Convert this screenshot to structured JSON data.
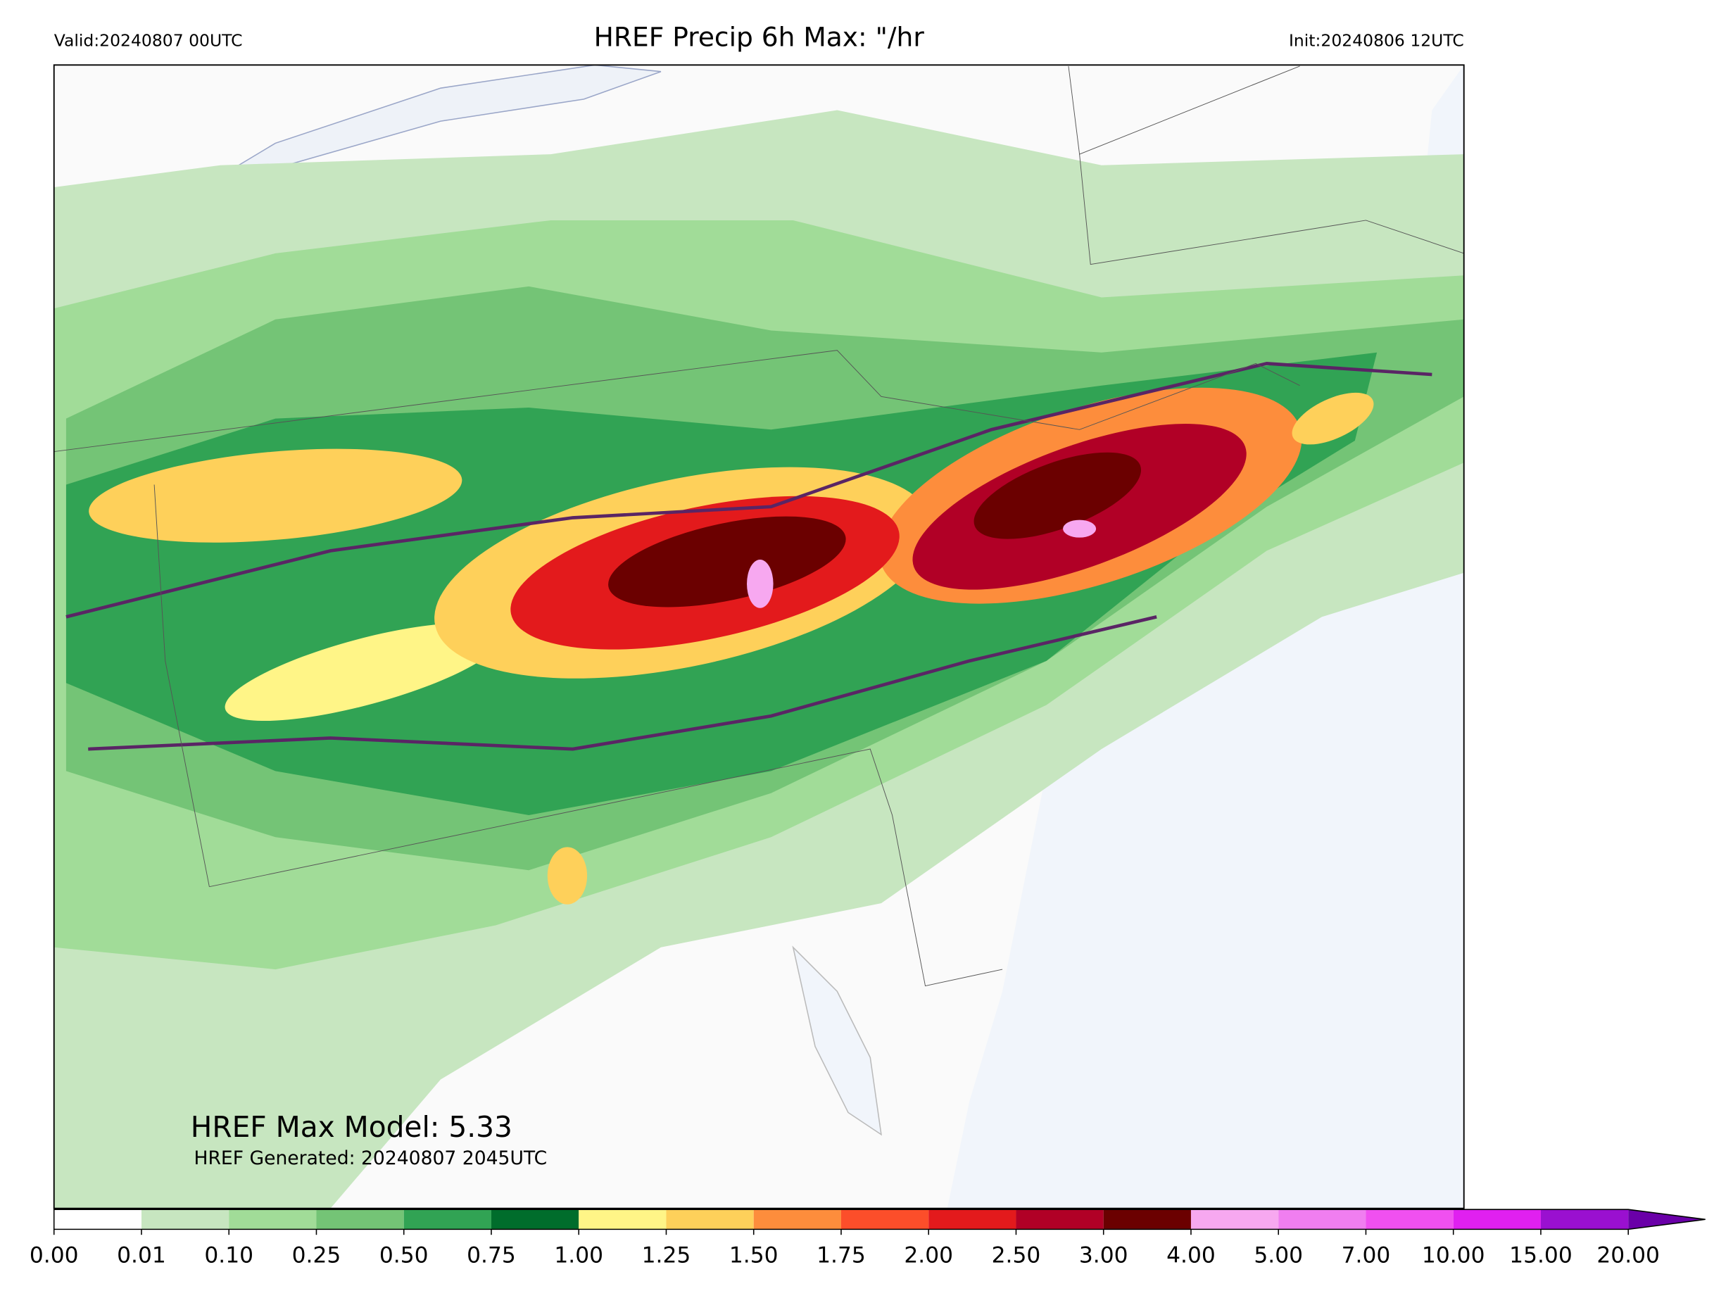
{
  "header": {
    "valid": "Valid:20240807 00UTC",
    "title": "HREF Precip 6h Max: \"/hr",
    "init": "Init:20240806 12UTC"
  },
  "annotations": {
    "max_model": "HREF Max Model: 5.33",
    "generated": "HREF Generated: 20240807 2045UTC"
  },
  "colorbar": {
    "levels": [
      {
        "value": 0,
        "label": "0.00"
      },
      {
        "value": 0.01,
        "label": "0.01"
      },
      {
        "value": 0.1,
        "label": "0.10"
      },
      {
        "value": 0.25,
        "label": "0.25"
      },
      {
        "value": 0.5,
        "label": "0.50"
      },
      {
        "value": 0.75,
        "label": "0.75"
      },
      {
        "value": 1,
        "label": "1.00"
      },
      {
        "value": 1.25,
        "label": "1.25"
      },
      {
        "value": 1.5,
        "label": "1.50"
      },
      {
        "value": 1.75,
        "label": "1.75"
      },
      {
        "value": 2,
        "label": "2.00"
      },
      {
        "value": 2.5,
        "label": "2.50"
      },
      {
        "value": 3,
        "label": "3.00"
      },
      {
        "value": 4,
        "label": "4.00"
      },
      {
        "value": 5,
        "label": "5.00"
      },
      {
        "value": 7,
        "label": "7.00"
      },
      {
        "value": 10,
        "label": "10.00"
      },
      {
        "value": 15,
        "label": "15.00"
      },
      {
        "value": 20,
        "label": "20.00"
      }
    ],
    "colors": [
      "#ffffff",
      "#c7e6c0",
      "#a1dc98",
      "#74c476",
      "#31a354",
      "#006d2c",
      "#fff587",
      "#fed05a",
      "#fd8d3c",
      "#fc4e2a",
      "#e31a1c",
      "#b10026",
      "#6b0000",
      "#f7a8f0",
      "#f07ef0",
      "#f050f0",
      "#e020f0",
      "#9a10d0"
    ],
    "extend_color": "#6a00a8"
  }
}
